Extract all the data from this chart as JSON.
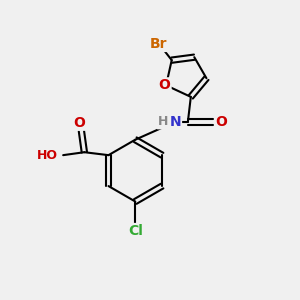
{
  "bg_color": "#f0f0f0",
  "atom_colors": {
    "C": "#000000",
    "H": "#888888",
    "N": "#3333cc",
    "O": "#cc0000",
    "Br": "#cc6600",
    "Cl": "#33aa33"
  },
  "bond_color": "#000000",
  "bond_width": 1.5,
  "font_size": 9,
  "figsize": [
    3.0,
    3.0
  ],
  "dpi": 100
}
